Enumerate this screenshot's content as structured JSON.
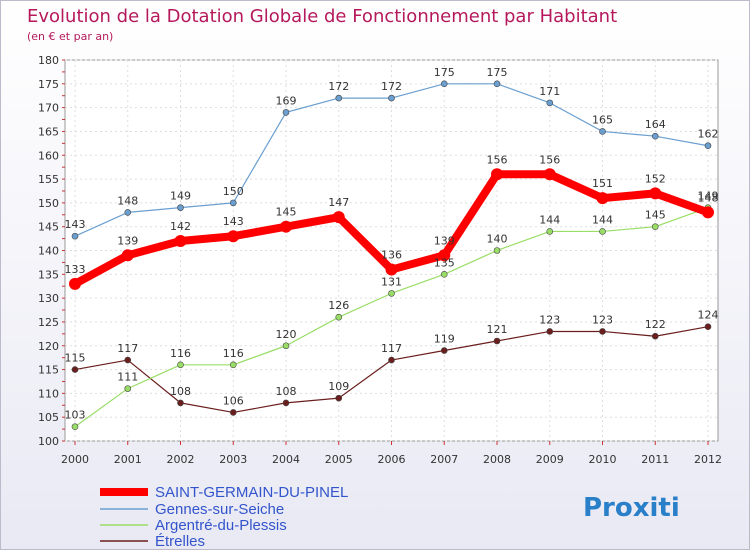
{
  "chart_data": {
    "type": "line",
    "title": "Evolution de la Dotation Globale de Fonctionnement par Habitant",
    "subtitle": "(en € et par an)",
    "x": [
      "2000",
      "2001",
      "2002",
      "2003",
      "2004",
      "2005",
      "2006",
      "2007",
      "2008",
      "2009",
      "2010",
      "2011",
      "2012"
    ],
    "ylim": [
      100,
      180
    ],
    "yticks": [
      100,
      105,
      110,
      115,
      120,
      125,
      130,
      135,
      140,
      145,
      150,
      155,
      160,
      165,
      170,
      175,
      180
    ],
    "grid": true,
    "legend_position": "bottom-left",
    "series": [
      {
        "name": "SAINT-GERMAIN-DU-PINEL",
        "color": "#ff0000",
        "values": [
          133,
          139,
          142,
          143,
          145,
          147,
          136,
          139,
          156,
          156,
          151,
          152,
          148
        ]
      },
      {
        "name": "Gennes-sur-Seiche",
        "color": "#6a9fd0",
        "values": [
          143,
          148,
          149,
          150,
          169,
          172,
          172,
          175,
          175,
          171,
          165,
          164,
          162
        ]
      },
      {
        "name": "Argentré-du-Plessis",
        "color": "#99dd66",
        "values": [
          103,
          111,
          116,
          116,
          120,
          126,
          131,
          135,
          140,
          144,
          144,
          145,
          149
        ]
      },
      {
        "name": "Étrelles",
        "color": "#6b1e1e",
        "values": [
          115,
          117,
          108,
          106,
          108,
          109,
          117,
          119,
          121,
          123,
          123,
          122,
          124
        ]
      }
    ]
  },
  "brand": {
    "logo_text": "Proxiti"
  }
}
